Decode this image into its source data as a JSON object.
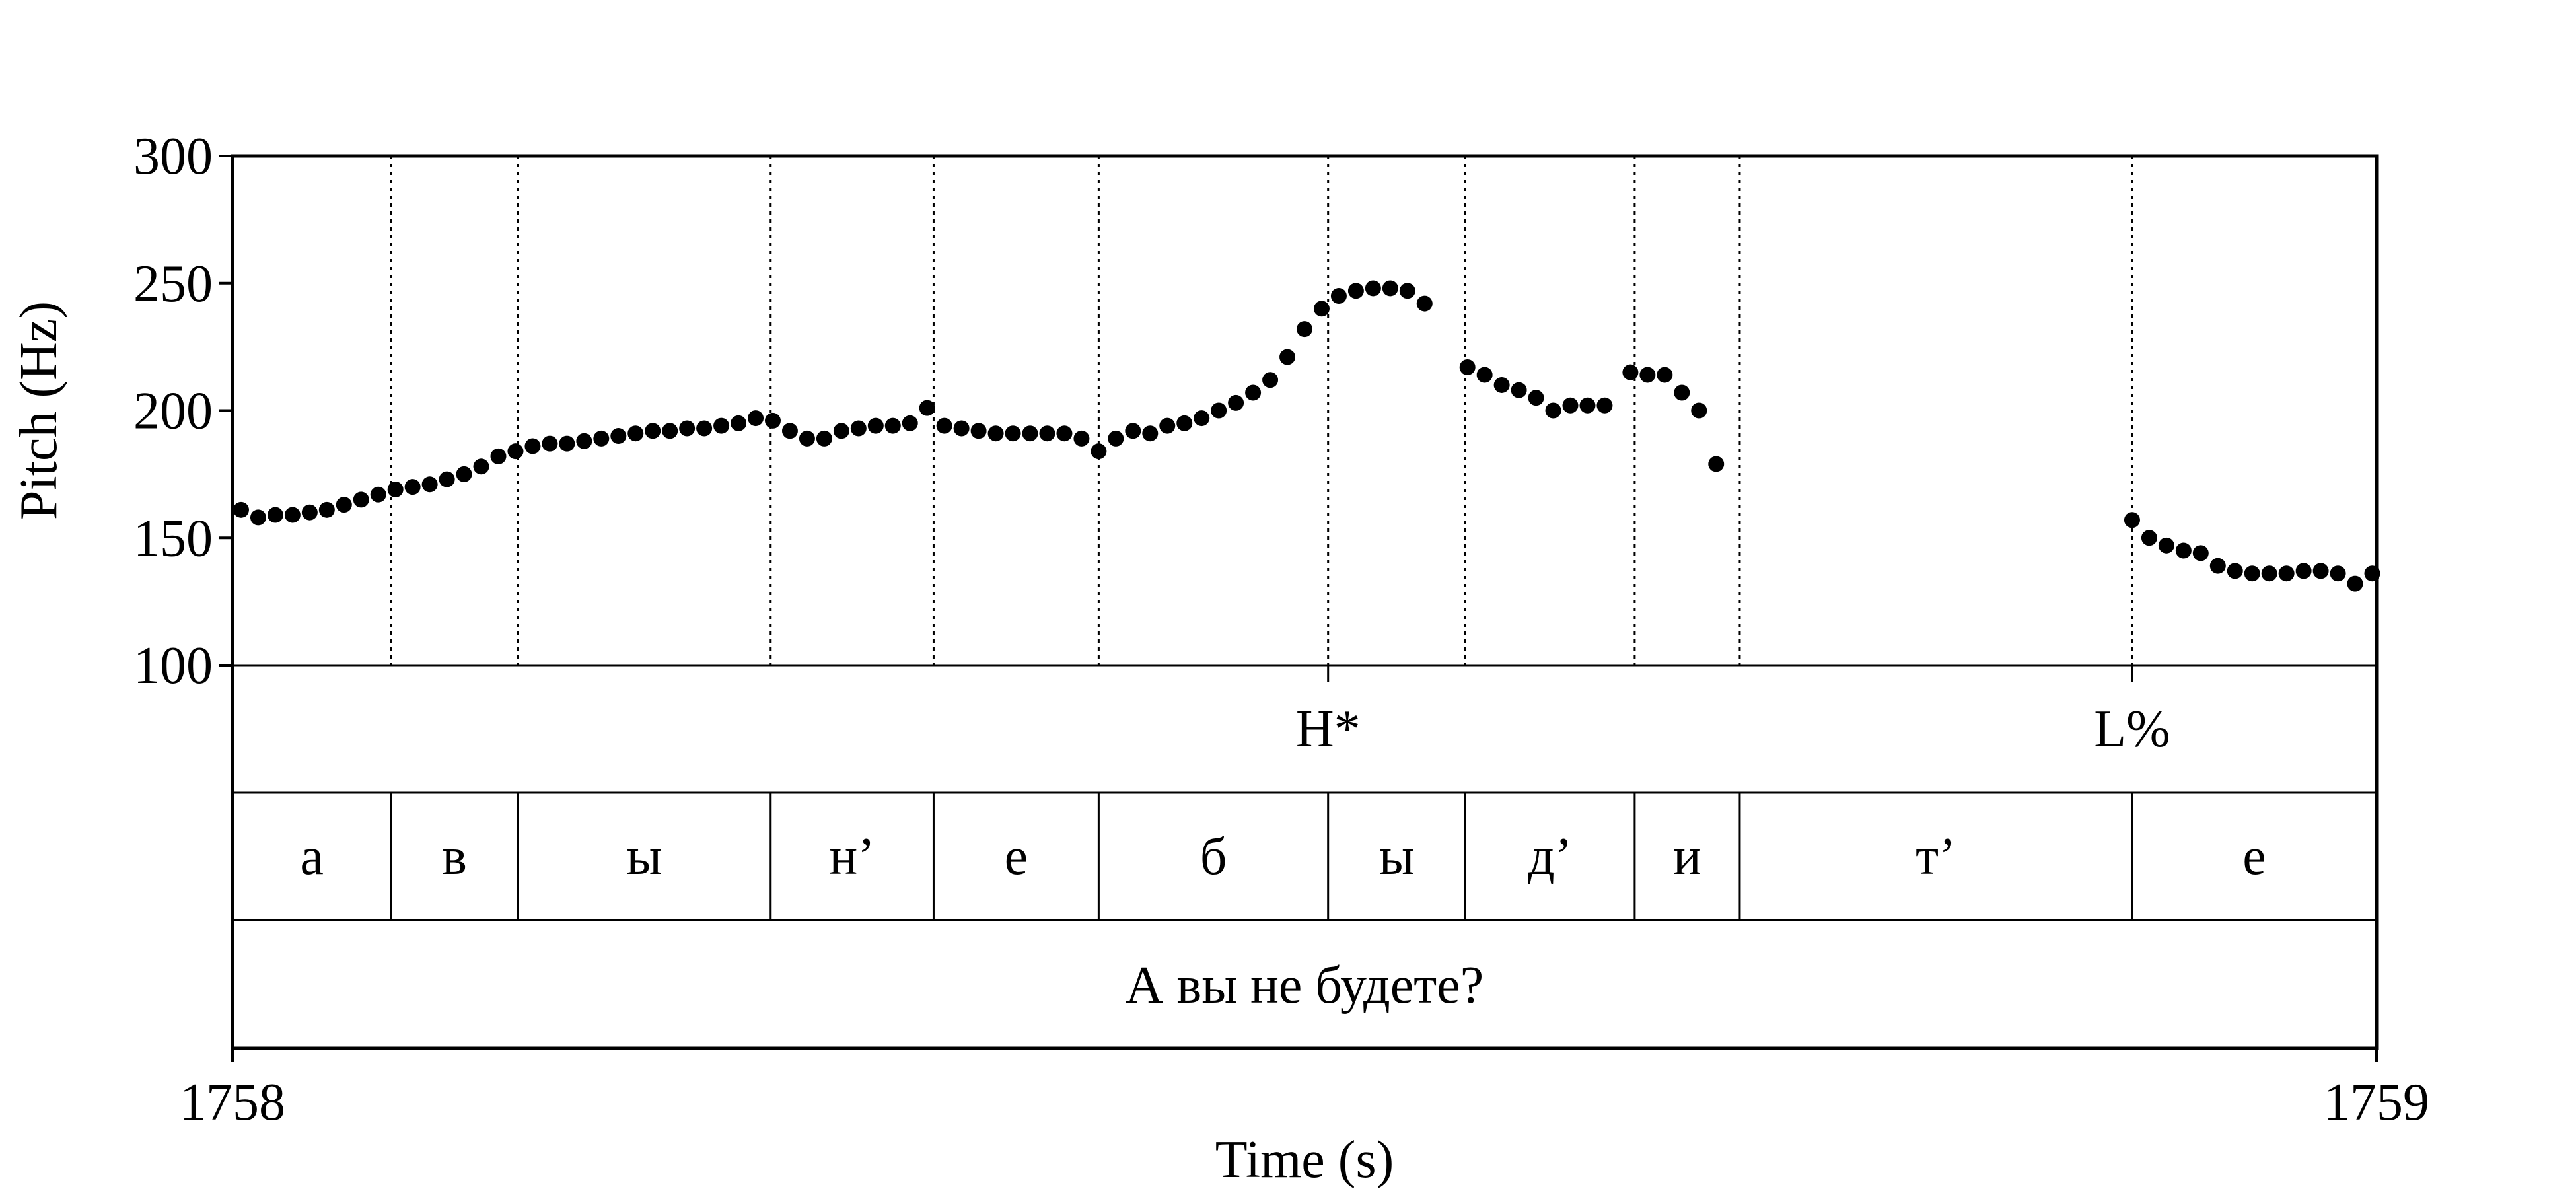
{
  "chart_data": {
    "type": "scatter",
    "title": "",
    "xlabel": "Time (s)",
    "ylabel": "Pitch (Hz)",
    "xlim": [
      1758,
      1759
    ],
    "ylim": [
      100,
      300
    ],
    "x_tick_labels": [
      "1758",
      "1759"
    ],
    "y_ticks": [
      100,
      150,
      200,
      250,
      300
    ],
    "y_tick_labels": [
      "100",
      "150",
      "200",
      "250",
      "300"
    ],
    "grid": false,
    "point_color": "#000000",
    "series": [
      {
        "values": [
          [
            1758.004,
            161
          ],
          [
            1758.012,
            158
          ],
          [
            1758.02,
            159
          ],
          [
            1758.028,
            159
          ],
          [
            1758.036,
            160
          ],
          [
            1758.044,
            161
          ],
          [
            1758.052,
            163
          ],
          [
            1758.06,
            165
          ],
          [
            1758.068,
            167
          ],
          [
            1758.076,
            169
          ],
          [
            1758.084,
            170
          ],
          [
            1758.092,
            171
          ],
          [
            1758.1,
            173
          ],
          [
            1758.108,
            175
          ],
          [
            1758.116,
            178
          ],
          [
            1758.124,
            182
          ],
          [
            1758.132,
            184
          ],
          [
            1758.14,
            186
          ],
          [
            1758.148,
            187
          ],
          [
            1758.156,
            187
          ],
          [
            1758.164,
            188
          ],
          [
            1758.172,
            189
          ],
          [
            1758.18,
            190
          ],
          [
            1758.188,
            191
          ],
          [
            1758.196,
            192
          ],
          [
            1758.204,
            192
          ],
          [
            1758.212,
            193
          ],
          [
            1758.22,
            193
          ],
          [
            1758.228,
            194
          ],
          [
            1758.236,
            195
          ],
          [
            1758.244,
            197
          ],
          [
            1758.252,
            196
          ],
          [
            1758.26,
            192
          ],
          [
            1758.268,
            189
          ],
          [
            1758.276,
            189
          ],
          [
            1758.284,
            192
          ],
          [
            1758.292,
            193
          ],
          [
            1758.3,
            194
          ],
          [
            1758.308,
            194
          ],
          [
            1758.316,
            195
          ],
          [
            1758.324,
            201
          ],
          [
            1758.332,
            194
          ],
          [
            1758.34,
            193
          ],
          [
            1758.348,
            192
          ],
          [
            1758.356,
            191
          ],
          [
            1758.364,
            191
          ],
          [
            1758.372,
            191
          ],
          [
            1758.38,
            191
          ],
          [
            1758.388,
            191
          ],
          [
            1758.396,
            189
          ],
          [
            1758.404,
            184
          ],
          [
            1758.412,
            189
          ],
          [
            1758.42,
            192
          ],
          [
            1758.428,
            191
          ],
          [
            1758.436,
            194
          ],
          [
            1758.444,
            195
          ],
          [
            1758.452,
            197
          ],
          [
            1758.46,
            200
          ],
          [
            1758.468,
            203
          ],
          [
            1758.476,
            207
          ],
          [
            1758.484,
            212
          ],
          [
            1758.492,
            221
          ],
          [
            1758.5,
            232
          ],
          [
            1758.508,
            240
          ],
          [
            1758.516,
            245
          ],
          [
            1758.524,
            247
          ],
          [
            1758.532,
            248
          ],
          [
            1758.54,
            248
          ],
          [
            1758.548,
            247
          ],
          [
            1758.556,
            242
          ],
          [
            1758.576,
            217
          ],
          [
            1758.584,
            214
          ],
          [
            1758.592,
            210
          ],
          [
            1758.6,
            208
          ],
          [
            1758.608,
            205
          ],
          [
            1758.616,
            200
          ],
          [
            1758.624,
            202
          ],
          [
            1758.632,
            202
          ],
          [
            1758.64,
            202
          ],
          [
            1758.652,
            215
          ],
          [
            1758.66,
            214
          ],
          [
            1758.668,
            214
          ],
          [
            1758.676,
            207
          ],
          [
            1758.684,
            200
          ],
          [
            1758.692,
            179
          ],
          [
            1758.886,
            157
          ],
          [
            1758.894,
            150
          ],
          [
            1758.902,
            147
          ],
          [
            1758.91,
            145
          ],
          [
            1758.918,
            144
          ],
          [
            1758.926,
            139
          ],
          [
            1758.934,
            137
          ],
          [
            1758.942,
            136
          ],
          [
            1758.95,
            136
          ],
          [
            1758.958,
            136
          ],
          [
            1758.966,
            137
          ],
          [
            1758.974,
            137
          ],
          [
            1758.982,
            136
          ],
          [
            1758.99,
            132
          ],
          [
            1758.998,
            136
          ]
        ]
      }
    ],
    "boundaries": [
      1758.074,
      1758.133,
      1758.251,
      1758.327,
      1758.404,
      1758.511,
      1758.575,
      1758.654,
      1758.703,
      1758.886
    ],
    "tones_tier": {
      "labels": [
        {
          "t": 1758.511,
          "text": "H*"
        },
        {
          "t": 1758.886,
          "text": "L%"
        }
      ]
    },
    "segments_tier": {
      "labels": [
        "а",
        "в",
        "ы",
        "н’",
        "е",
        "б",
        "ы",
        "д’",
        "и",
        "т’",
        "е"
      ]
    },
    "sentence_tier": {
      "text": "А вы не будете?"
    }
  }
}
